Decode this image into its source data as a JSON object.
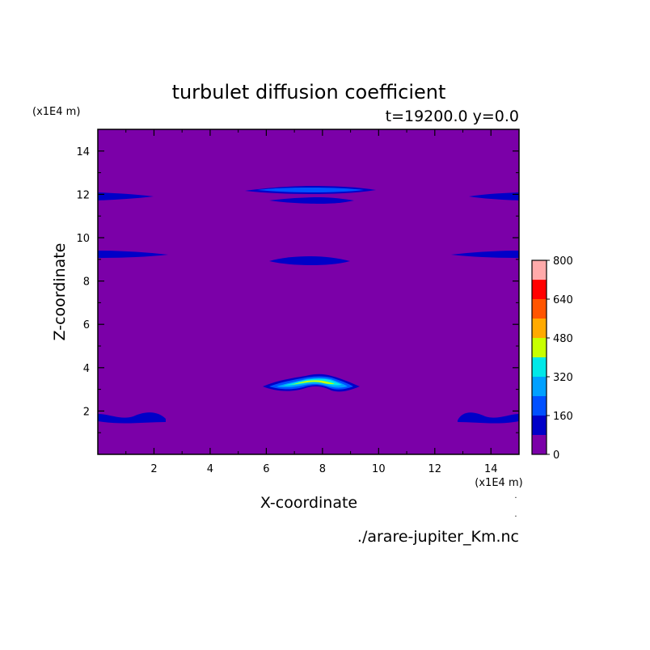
{
  "chart_data": {
    "type": "heatmap",
    "title": "turbulet diffusion coefficient",
    "subtitle": "t=19200.0 y=0.0",
    "xlabel": "X-coordinate",
    "ylabel": "Z-coordinate",
    "x_unit": "(x1E4 m)",
    "y_unit": "(x1E4 m)",
    "source": "./arare-jupiter_Km.nc",
    "xlim": [
      0,
      15
    ],
    "ylim": [
      0,
      15
    ],
    "x_ticks": [
      2,
      4,
      6,
      8,
      10,
      12,
      14
    ],
    "y_ticks": [
      2,
      4,
      6,
      8,
      10,
      12,
      14
    ],
    "background_level_color": "#7b00a8",
    "colorbar": {
      "levels": [
        0,
        80,
        160,
        240,
        320,
        400,
        480,
        560,
        640,
        720,
        800
      ],
      "tick_labels": [
        "0",
        "160",
        "320",
        "480",
        "640",
        "800"
      ],
      "colors": [
        "#7b00a8",
        "#0000c8",
        "#0050ff",
        "#00a0ff",
        "#00e8e8",
        "#c8ff00",
        "#ffaa00",
        "#ff5500",
        "#ff0000",
        "#ffaaaa"
      ]
    },
    "features": [
      {
        "region": "left edge band",
        "x_range": [
          0,
          2.4
        ],
        "z_range": [
          1.4,
          2.0
        ],
        "level": 80
      },
      {
        "region": "right edge band",
        "x_range": [
          12.7,
          15
        ],
        "z_range": [
          1.4,
          2.0
        ],
        "level": 80
      },
      {
        "region": "center arch",
        "x_range": [
          5.7,
          9.1
        ],
        "z_range": [
          3.0,
          3.6
        ],
        "level_max": 400
      },
      {
        "region": "center band",
        "x_range": [
          6.2,
          8.8
        ],
        "z_range": [
          8.8,
          9.0
        ],
        "level": 80
      },
      {
        "region": "left edge band",
        "x_range": [
          0,
          2.5
        ],
        "z_range": [
          9.1,
          9.3
        ],
        "level": 80
      },
      {
        "region": "right edge band",
        "x_range": [
          12.5,
          15
        ],
        "z_range": [
          9.1,
          9.3
        ],
        "level": 80
      },
      {
        "region": "center band",
        "x_range": [
          6.2,
          8.8
        ],
        "z_range": [
          11.5,
          11.7
        ],
        "level": 80
      },
      {
        "region": "upper center band",
        "x_range": [
          5.3,
          9.8
        ],
        "z_range": [
          12.0,
          12.2
        ],
        "level": 160
      },
      {
        "region": "left edge band",
        "x_range": [
          0,
          1.9
        ],
        "z_range": [
          11.7,
          11.9
        ],
        "level": 80
      },
      {
        "region": "right edge band",
        "x_range": [
          13.1,
          15
        ],
        "z_range": [
          11.7,
          11.9
        ],
        "level": 80
      }
    ]
  }
}
